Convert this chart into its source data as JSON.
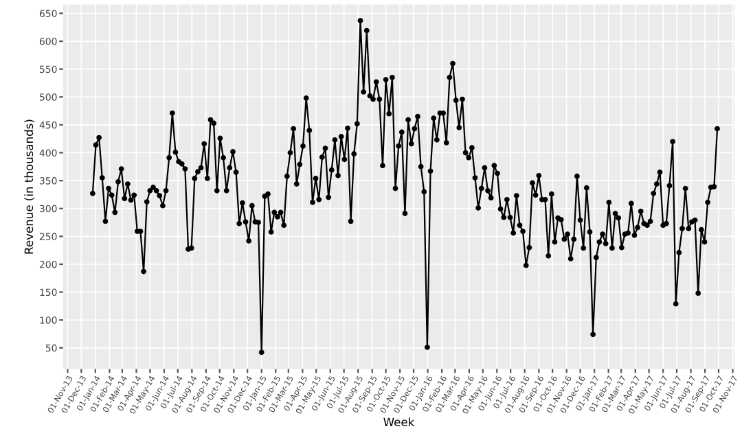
{
  "chart_data": {
    "type": "line",
    "xlabel": "Week",
    "ylabel": "Revenue (in thousands)",
    "x": [
      "2013-12-26",
      "2014-01-02",
      "2014-01-09",
      "2014-01-16",
      "2014-01-23",
      "2014-01-30",
      "2014-02-06",
      "2014-02-13",
      "2014-02-20",
      "2014-02-27",
      "2014-03-06",
      "2014-03-13",
      "2014-03-20",
      "2014-03-27",
      "2014-04-03",
      "2014-04-10",
      "2014-04-17",
      "2014-04-24",
      "2014-05-01",
      "2014-05-08",
      "2014-05-15",
      "2014-05-22",
      "2014-05-29",
      "2014-06-05",
      "2014-06-12",
      "2014-06-19",
      "2014-06-26",
      "2014-07-03",
      "2014-07-10",
      "2014-07-17",
      "2014-07-24",
      "2014-07-31",
      "2014-08-07",
      "2014-08-14",
      "2014-08-21",
      "2014-08-28",
      "2014-09-04",
      "2014-09-11",
      "2014-09-18",
      "2014-09-25",
      "2014-10-02",
      "2014-10-09",
      "2014-10-16",
      "2014-10-23",
      "2014-10-30",
      "2014-11-06",
      "2014-11-13",
      "2014-11-20",
      "2014-11-27",
      "2014-12-04",
      "2014-12-11",
      "2014-12-18",
      "2014-12-25",
      "2015-01-01",
      "2015-01-08",
      "2015-01-15",
      "2015-01-22",
      "2015-01-29",
      "2015-02-05",
      "2015-02-12",
      "2015-02-19",
      "2015-02-26",
      "2015-03-05",
      "2015-03-12",
      "2015-03-19",
      "2015-03-26",
      "2015-04-02",
      "2015-04-09",
      "2015-04-16",
      "2015-04-23",
      "2015-04-30",
      "2015-05-07",
      "2015-05-14",
      "2015-05-21",
      "2015-05-28",
      "2015-06-04",
      "2015-06-11",
      "2015-06-18",
      "2015-06-25",
      "2015-07-02",
      "2015-07-09",
      "2015-07-16",
      "2015-07-23",
      "2015-07-30",
      "2015-08-06",
      "2015-08-13",
      "2015-08-20",
      "2015-08-27",
      "2015-09-03",
      "2015-09-10",
      "2015-09-17",
      "2015-09-24",
      "2015-10-01",
      "2015-10-08",
      "2015-10-15",
      "2015-10-22",
      "2015-10-29",
      "2015-11-05",
      "2015-11-12",
      "2015-11-19",
      "2015-11-26",
      "2015-12-03",
      "2015-12-10",
      "2015-12-17",
      "2015-12-24",
      "2015-12-31",
      "2016-01-07",
      "2016-01-14",
      "2016-01-21",
      "2016-01-28",
      "2016-02-04",
      "2016-02-11",
      "2016-02-18",
      "2016-02-25",
      "2016-03-03",
      "2016-03-10",
      "2016-03-17",
      "2016-03-24",
      "2016-03-31",
      "2016-04-07",
      "2016-04-14",
      "2016-04-21",
      "2016-04-28",
      "2016-05-05",
      "2016-05-12",
      "2016-05-19",
      "2016-05-26",
      "2016-06-02",
      "2016-06-09",
      "2016-06-16",
      "2016-06-23",
      "2016-06-30",
      "2016-07-07",
      "2016-07-14",
      "2016-07-21",
      "2016-07-28",
      "2016-08-04",
      "2016-08-11",
      "2016-08-18",
      "2016-08-25",
      "2016-09-01",
      "2016-09-08",
      "2016-09-15",
      "2016-09-22",
      "2016-09-29",
      "2016-10-06",
      "2016-10-13",
      "2016-10-20",
      "2016-10-27",
      "2016-11-03",
      "2016-11-10",
      "2016-11-17",
      "2016-11-24",
      "2016-12-01",
      "2016-12-08",
      "2016-12-15",
      "2016-12-22",
      "2016-12-29",
      "2017-01-05",
      "2017-01-12",
      "2017-01-19",
      "2017-01-26",
      "2017-02-02",
      "2017-02-09",
      "2017-02-16",
      "2017-02-23",
      "2017-03-02",
      "2017-03-09",
      "2017-03-16",
      "2017-03-23",
      "2017-03-30",
      "2017-04-06",
      "2017-04-13",
      "2017-04-20",
      "2017-04-27",
      "2017-05-04",
      "2017-05-11",
      "2017-05-18",
      "2017-05-25",
      "2017-06-01",
      "2017-06-08",
      "2017-06-15",
      "2017-06-22",
      "2017-06-29",
      "2017-07-06",
      "2017-07-13",
      "2017-07-20",
      "2017-07-27",
      "2017-08-03",
      "2017-08-10",
      "2017-08-17",
      "2017-08-24",
      "2017-08-31",
      "2017-09-07",
      "2017-09-14",
      "2017-09-21",
      "2017-09-28"
    ],
    "values": [
      327,
      414,
      427,
      355,
      277,
      336,
      324,
      293,
      348,
      371,
      318,
      344,
      315,
      324,
      259,
      259,
      187,
      312,
      332,
      338,
      332,
      323,
      305,
      332,
      391,
      471,
      401,
      384,
      380,
      371,
      227,
      229,
      354,
      366,
      373,
      416,
      354,
      459,
      453,
      332,
      426,
      391,
      332,
      373,
      402,
      365,
      273,
      310,
      276,
      242,
      305,
      276,
      275,
      42,
      322,
      326,
      258,
      293,
      285,
      293,
      270,
      358,
      400,
      443,
      344,
      379,
      412,
      498,
      440,
      311,
      354,
      316,
      392,
      408,
      320,
      369,
      423,
      359,
      429,
      388,
      444,
      277,
      398,
      452,
      637,
      509,
      619,
      502,
      496,
      527,
      496,
      377,
      531,
      470,
      535,
      336,
      412,
      437,
      291,
      459,
      416,
      443,
      465,
      375,
      330,
      51,
      367,
      462,
      423,
      471,
      471,
      418,
      535,
      560,
      494,
      445,
      496,
      400,
      391,
      409,
      355,
      301,
      336,
      373,
      332,
      319,
      377,
      363,
      299,
      284,
      316,
      284,
      256,
      323,
      270,
      259,
      198,
      230,
      346,
      324,
      359,
      316,
      316,
      215,
      326,
      240,
      283,
      280,
      245,
      254,
      210,
      245,
      358,
      279,
      229,
      337,
      258,
      74,
      212,
      240,
      254,
      237,
      311,
      229,
      291,
      283,
      230,
      254,
      256,
      309,
      252,
      266,
      295,
      273,
      270,
      277,
      327,
      344,
      365,
      270,
      273,
      341,
      420,
      129,
      221,
      264,
      336,
      264,
      276,
      279,
      148,
      262,
      240,
      311,
      338,
      339,
      443
    ],
    "color": "#000000",
    "marker": "circle",
    "line_style": "solid",
    "grid": true,
    "xlim": [
      "2013-10-22",
      "2017-11-05"
    ],
    "ylim": [
      12,
      666
    ],
    "yticks": [
      50,
      100,
      150,
      200,
      250,
      300,
      350,
      400,
      450,
      500,
      550,
      600,
      650
    ],
    "xticks": [
      {
        "value": "2013-11-01",
        "label": "01-Nov-13"
      },
      {
        "value": "2013-12-01",
        "label": "01-Dec-13"
      },
      {
        "value": "2014-01-01",
        "label": "01-Jan-14"
      },
      {
        "value": "2014-02-01",
        "label": "01-Feb-14"
      },
      {
        "value": "2014-03-01",
        "label": "01-Mar-14"
      },
      {
        "value": "2014-04-01",
        "label": "01-Apr-14"
      },
      {
        "value": "2014-05-01",
        "label": "01-May-14"
      },
      {
        "value": "2014-06-01",
        "label": "01-Jun-14"
      },
      {
        "value": "2014-07-01",
        "label": "01-Jul-14"
      },
      {
        "value": "2014-08-01",
        "label": "01-Aug-14"
      },
      {
        "value": "2014-09-01",
        "label": "01-Sep-14"
      },
      {
        "value": "2014-10-01",
        "label": "01-Oct-14"
      },
      {
        "value": "2014-11-01",
        "label": "01-Nov-14"
      },
      {
        "value": "2014-12-01",
        "label": "01-Dec-14"
      },
      {
        "value": "2015-01-01",
        "label": "01-Jan-15"
      },
      {
        "value": "2015-02-01",
        "label": "01-Feb-15"
      },
      {
        "value": "2015-03-01",
        "label": "01-Mar-15"
      },
      {
        "value": "2015-04-01",
        "label": "01-Apr-15"
      },
      {
        "value": "2015-05-01",
        "label": "01-May-15"
      },
      {
        "value": "2015-06-01",
        "label": "01-Jun-15"
      },
      {
        "value": "2015-07-01",
        "label": "01-Jul-15"
      },
      {
        "value": "2015-08-01",
        "label": "01-Aug-15"
      },
      {
        "value": "2015-09-01",
        "label": "01-Sep-15"
      },
      {
        "value": "2015-10-01",
        "label": "01-Oct-15"
      },
      {
        "value": "2015-11-01",
        "label": "01-Nov-15"
      },
      {
        "value": "2015-12-01",
        "label": "01-Dec-15"
      },
      {
        "value": "2016-01-01",
        "label": "01-Jan-16"
      },
      {
        "value": "2016-02-01",
        "label": "01-Feb-16"
      },
      {
        "value": "2016-03-01",
        "label": "01-Mar-16"
      },
      {
        "value": "2016-04-01",
        "label": "01-Apr-16"
      },
      {
        "value": "2016-05-01",
        "label": "01-May-16"
      },
      {
        "value": "2016-06-01",
        "label": "01-Jun-16"
      },
      {
        "value": "2016-07-01",
        "label": "01-Jul-16"
      },
      {
        "value": "2016-08-01",
        "label": "01-Aug-16"
      },
      {
        "value": "2016-09-01",
        "label": "01-Sep-16"
      },
      {
        "value": "2016-10-01",
        "label": "01-Oct-16"
      },
      {
        "value": "2016-11-01",
        "label": "01-Nov-16"
      },
      {
        "value": "2016-12-01",
        "label": "01-Dec-16"
      },
      {
        "value": "2017-01-01",
        "label": "01-Jan-17"
      },
      {
        "value": "2017-02-01",
        "label": "01-Feb-17"
      },
      {
        "value": "2017-03-01",
        "label": "01-Mar-17"
      },
      {
        "value": "2017-04-01",
        "label": "01-Apr-17"
      },
      {
        "value": "2017-05-01",
        "label": "01-May-17"
      },
      {
        "value": "2017-06-01",
        "label": "01-Jun-17"
      },
      {
        "value": "2017-07-01",
        "label": "01-Jul-17"
      },
      {
        "value": "2017-08-01",
        "label": "01-Aug-17"
      },
      {
        "value": "2017-09-01",
        "label": "01-Sep-17"
      },
      {
        "value": "2017-10-01",
        "label": "01-Oct-17"
      },
      {
        "value": "2017-11-01",
        "label": "01-Nov-17"
      }
    ]
  }
}
